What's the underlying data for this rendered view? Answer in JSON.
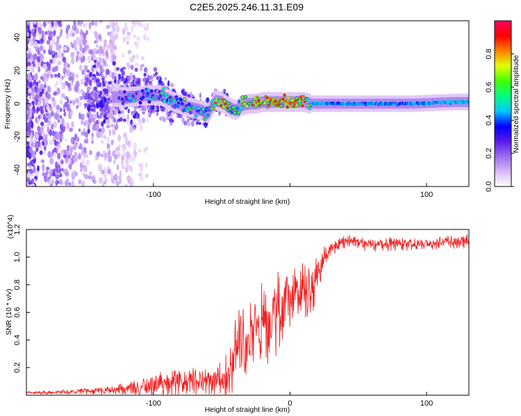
{
  "title": "C2E5.2025.246.11.31.E09",
  "chart_data": [
    {
      "type": "heatmap",
      "name": "spectrogram",
      "xlabel": "Height of straight line (km)",
      "ylabel": "Frequency (Hz)",
      "xlim": [
        -193,
        131
      ],
      "ylim": [
        -50,
        50
      ],
      "x_ticks": [
        -100,
        0,
        100
      ],
      "x_tick_labels": [
        "-100",
        "",
        "100"
      ],
      "y_ticks": [
        -40,
        -20,
        0,
        20,
        40
      ],
      "y_tick_labels": [
        "-40",
        "-20",
        "0",
        "20",
        "40"
      ],
      "colorbar": {
        "label": "Normalized spectral amplitude",
        "range": [
          0,
          1
        ],
        "ticks": [
          0.0,
          0.2,
          0.4,
          0.6,
          0.8
        ],
        "tick_labels": [
          "0.0",
          "0.2",
          "0.4",
          "0.6",
          "0.8"
        ],
        "colors": [
          "#ffffff",
          "#d9b8f5",
          "#9a6cf0",
          "#5b1ae8",
          "#0000ff",
          "#00c8ff",
          "#00ff80",
          "#40ff00",
          "#e0ff00",
          "#ff8000",
          "#ff0000",
          "#ff0060"
        ]
      },
      "ridge": {
        "description": "dominant frequency trace vs height",
        "x": [
          -120,
          -105,
          -95,
          -85,
          -75,
          -65,
          -60,
          -55,
          -50,
          -45,
          -40,
          -35,
          -30,
          -25,
          -20,
          -15,
          -10,
          -5,
          0,
          5,
          10,
          15,
          30,
          60,
          90,
          120,
          131
        ],
        "y": [
          4,
          5,
          5,
          1,
          -2,
          -4,
          -6,
          2,
          1,
          -2,
          -4,
          -1,
          0,
          0,
          1,
          1,
          1,
          1,
          1,
          1,
          1,
          0,
          0,
          0,
          0,
          1,
          1
        ],
        "amplitude": [
          0.25,
          0.35,
          0.4,
          0.45,
          0.45,
          0.4,
          0.35,
          0.75,
          0.8,
          0.7,
          0.5,
          0.6,
          0.75,
          0.8,
          0.85,
          0.9,
          0.85,
          0.9,
          0.9,
          0.85,
          0.85,
          0.45,
          0.42,
          0.42,
          0.42,
          0.45,
          0.45
        ]
      }
    },
    {
      "type": "line",
      "name": "snr",
      "xlabel": "Height of straight line (km)",
      "ylabel": "SNR (10 * v/v)",
      "scale_label": "(x10^4)",
      "xlim": [
        -193,
        131
      ],
      "ylim": [
        0,
        1.2
      ],
      "x_ticks": [
        -100,
        0,
        100
      ],
      "x_tick_labels": [
        "-100",
        "0",
        "100"
      ],
      "y_ticks": [
        0.2,
        0.4,
        0.6,
        0.8,
        1.0,
        1.2
      ],
      "y_tick_labels": [
        "0.2",
        "0.4",
        "0.6",
        "0.8",
        "1.0",
        "1.2"
      ],
      "color": "#ee2222",
      "series": [
        {
          "name": "SNR",
          "x": [
            -193,
            -170,
            -150,
            -130,
            -110,
            -100,
            -90,
            -80,
            -70,
            -60,
            -50,
            -45,
            -42,
            -40,
            -38,
            -35,
            -30,
            -25,
            -20,
            -15,
            -10,
            -5,
            0,
            5,
            10,
            15,
            18,
            20,
            25,
            30,
            35,
            40,
            50,
            60,
            80,
            100,
            115,
            131
          ],
          "values": [
            0.02,
            0.02,
            0.03,
            0.04,
            0.06,
            0.08,
            0.09,
            0.1,
            0.11,
            0.11,
            0.12,
            0.15,
            0.2,
            0.28,
            0.32,
            0.36,
            0.42,
            0.5,
            0.56,
            0.6,
            0.62,
            0.66,
            0.7,
            0.72,
            0.74,
            0.76,
            0.85,
            0.92,
            1.0,
            1.06,
            1.1,
            1.12,
            1.11,
            1.1,
            1.1,
            1.1,
            1.11,
            1.12
          ],
          "noise": [
            0.005,
            0.01,
            0.015,
            0.02,
            0.04,
            0.05,
            0.06,
            0.06,
            0.07,
            0.07,
            0.08,
            0.12,
            0.15,
            0.2,
            0.2,
            0.2,
            0.18,
            0.2,
            0.2,
            0.2,
            0.18,
            0.18,
            0.15,
            0.15,
            0.15,
            0.15,
            0.1,
            0.08,
            0.06,
            0.04,
            0.03,
            0.03,
            0.03,
            0.03,
            0.03,
            0.03,
            0.03,
            0.03
          ]
        }
      ]
    }
  ]
}
